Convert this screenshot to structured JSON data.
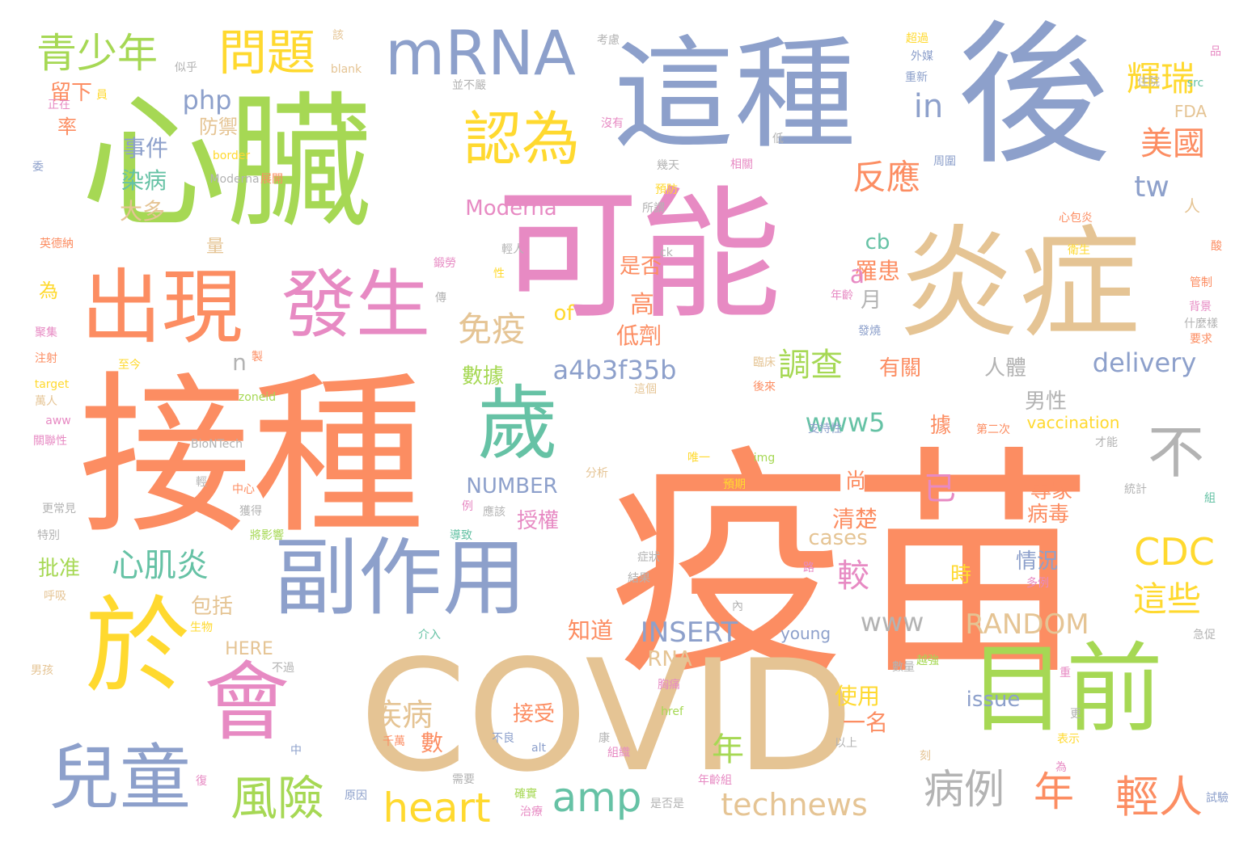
{
  "words": [
    {
      "text": "疫苗",
      "color": "c0"
    },
    {
      "text": "接種",
      "color": "c0"
    },
    {
      "text": "可能",
      "color": "c2"
    },
    {
      "text": "後",
      "color": "c1"
    },
    {
      "text": "心臟",
      "color": "c3"
    },
    {
      "text": "這種",
      "color": "c1"
    },
    {
      "text": "炎症",
      "color": "c5"
    },
    {
      "text": "COVID",
      "color": "c5"
    },
    {
      "text": "副作用",
      "color": "c1"
    },
    {
      "text": "於",
      "color": "c4"
    },
    {
      "text": "目前",
      "color": "c3"
    },
    {
      "text": "出現",
      "color": "c0"
    },
    {
      "text": "發生",
      "color": "c2"
    },
    {
      "text": "歲",
      "color": "c6"
    },
    {
      "text": "會",
      "color": "c2"
    },
    {
      "text": "兒童",
      "color": "c1"
    },
    {
      "text": "mRNA",
      "color": "c1"
    },
    {
      "text": "認為",
      "color": "c4"
    },
    {
      "text": "問題",
      "color": "c4"
    },
    {
      "text": "青少年",
      "color": "c3"
    },
    {
      "text": "風險",
      "color": "c3"
    },
    {
      "text": "heart",
      "color": "c4"
    },
    {
      "text": "amp",
      "color": "c6"
    },
    {
      "text": "technews",
      "color": "c5"
    },
    {
      "text": "病例",
      "color": "c7"
    },
    {
      "text": "年",
      "color": "c0"
    },
    {
      "text": "輕人",
      "color": "c0"
    },
    {
      "text": "CDC",
      "color": "c4"
    },
    {
      "text": "這些",
      "color": "c4"
    },
    {
      "text": "輝瑞",
      "color": "c4"
    },
    {
      "text": "美國",
      "color": "c0"
    },
    {
      "text": "反應",
      "color": "c0"
    },
    {
      "text": "in",
      "color": "c1"
    },
    {
      "text": "免疫",
      "color": "c5"
    },
    {
      "text": "心肌炎",
      "color": "c6"
    },
    {
      "text": "不",
      "color": "c7"
    },
    {
      "text": "a4b3f35b",
      "color": "c1"
    },
    {
      "text": "delivery",
      "color": "c1"
    },
    {
      "text": "INSERT",
      "color": "c1"
    },
    {
      "text": "RANDOM",
      "color": "c5"
    },
    {
      "text": "www5",
      "color": "c6"
    },
    {
      "text": "www",
      "color": "c7"
    },
    {
      "text": "調查",
      "color": "c3"
    },
    {
      "text": "php",
      "color": "c1"
    },
    {
      "text": "tw",
      "color": "c1"
    },
    {
      "text": "已",
      "color": "c2"
    },
    {
      "text": "較",
      "color": "c2"
    },
    {
      "text": "疾病",
      "color": "c5"
    },
    {
      "text": "年",
      "color": "c3"
    },
    {
      "text": "防禦",
      "color": "c5"
    },
    {
      "text": "事件",
      "color": "c1"
    },
    {
      "text": "染病",
      "color": "c6"
    },
    {
      "text": "大多",
      "color": "c5"
    },
    {
      "text": "留下",
      "color": "c0"
    },
    {
      "text": "率",
      "color": "c0"
    },
    {
      "text": "Moderna",
      "color": "c2"
    },
    {
      "text": "NUMBER",
      "color": "c1"
    },
    {
      "text": "數據",
      "color": "c3"
    },
    {
      "text": "低劑",
      "color": "c0"
    },
    {
      "text": "高",
      "color": "c0"
    },
    {
      "text": "是否",
      "color": "c0"
    },
    {
      "text": "罹患",
      "color": "c0"
    },
    {
      "text": "cb",
      "color": "c6"
    },
    {
      "text": "a",
      "color": "c2"
    },
    {
      "text": "月",
      "color": "c7"
    },
    {
      "text": "of",
      "color": "c4"
    },
    {
      "text": "n",
      "color": "c7"
    },
    {
      "text": "有關",
      "color": "c0"
    },
    {
      "text": "人體",
      "color": "c7"
    },
    {
      "text": "男性",
      "color": "c7"
    },
    {
      "text": "據",
      "color": "c0"
    },
    {
      "text": "vaccination",
      "color": "c4"
    },
    {
      "text": "專家",
      "color": "c0"
    },
    {
      "text": "病毒",
      "color": "c0"
    },
    {
      "text": "情況",
      "color": "c1"
    },
    {
      "text": "時",
      "color": "c4"
    },
    {
      "text": "尚",
      "color": "c0"
    },
    {
      "text": "清楚",
      "color": "c0"
    },
    {
      "text": "cases",
      "color": "c5"
    },
    {
      "text": "授權",
      "color": "c2"
    },
    {
      "text": "批准",
      "color": "c3"
    },
    {
      "text": "包括",
      "color": "c5"
    },
    {
      "text": "知道",
      "color": "c0"
    },
    {
      "text": "HERE",
      "color": "c5"
    },
    {
      "text": "RNA",
      "color": "c5"
    },
    {
      "text": "接受",
      "color": "c0"
    },
    {
      "text": "數",
      "color": "c0"
    },
    {
      "text": "使用",
      "color": "c4"
    },
    {
      "text": "一名",
      "color": "c0"
    },
    {
      "text": "issue",
      "color": "c1"
    },
    {
      "text": "young",
      "color": "c1"
    },
    {
      "text": "FDA",
      "color": "c5"
    },
    {
      "text": "人",
      "color": "c5"
    },
    {
      "text": "量",
      "color": "c5"
    },
    {
      "text": "為",
      "color": "c4"
    },
    {
      "text": "似乎",
      "color": "c7"
    },
    {
      "text": "考慮",
      "color": "c7"
    },
    {
      "text": "並不嚴",
      "color": "c7"
    },
    {
      "text": "src",
      "color": "c6"
    },
    {
      "text": "blank",
      "color": "c5"
    },
    {
      "text": "border",
      "color": "c4"
    },
    {
      "text": "Moderna",
      "color": "c7"
    },
    {
      "text": "BioNTech",
      "color": "c7"
    },
    {
      "text": "zoneid",
      "color": "c3"
    },
    {
      "text": "target",
      "color": "c4"
    },
    {
      "text": "alt",
      "color": "c1"
    },
    {
      "text": "href",
      "color": "c3"
    },
    {
      "text": "img",
      "color": "c3"
    },
    {
      "text": "ck",
      "color": "c7"
    },
    {
      "text": "心包炎",
      "color": "c0"
    },
    {
      "text": "英德納",
      "color": "c0"
    },
    {
      "text": "注射",
      "color": "c0"
    },
    {
      "text": "萬人",
      "color": "c5"
    },
    {
      "text": "聚集",
      "color": "c2"
    },
    {
      "text": "更常見",
      "color": "c7"
    },
    {
      "text": "特別",
      "color": "c7"
    },
    {
      "text": "呼吸",
      "color": "c5"
    },
    {
      "text": "男孩",
      "color": "c5"
    },
    {
      "text": "關聯性",
      "color": "c2"
    },
    {
      "text": "中心",
      "color": "c0"
    },
    {
      "text": "獲得",
      "color": "c7"
    },
    {
      "text": "將影響",
      "color": "c3"
    },
    {
      "text": "導致",
      "color": "c6"
    },
    {
      "text": "生物",
      "color": "c4"
    },
    {
      "text": "介入",
      "color": "c6"
    },
    {
      "text": "不過",
      "color": "c7"
    },
    {
      "text": "原因",
      "color": "c1"
    },
    {
      "text": "需要",
      "color": "c7"
    },
    {
      "text": "治療",
      "color": "c2"
    },
    {
      "text": "確實",
      "color": "c3"
    },
    {
      "text": "年齡組",
      "color": "c2"
    },
    {
      "text": "是否是",
      "color": "c7"
    },
    {
      "text": "千萬",
      "color": "c0"
    },
    {
      "text": "不良",
      "color": "c1"
    },
    {
      "text": "組織",
      "color": "c2"
    },
    {
      "text": "胸痛",
      "color": "c2"
    },
    {
      "text": "症狀",
      "color": "c7"
    },
    {
      "text": "結果",
      "color": "c7"
    },
    {
      "text": "數量",
      "color": "c7"
    },
    {
      "text": "越強",
      "color": "c3"
    },
    {
      "text": "以上",
      "color": "c7"
    },
    {
      "text": "統計",
      "color": "c7"
    },
    {
      "text": "試驗",
      "color": "c1"
    },
    {
      "text": "表示",
      "color": "c4"
    },
    {
      "text": "急促",
      "color": "c7"
    },
    {
      "text": "多例",
      "color": "c2"
    },
    {
      "text": "第二次",
      "color": "c0"
    },
    {
      "text": "才能",
      "color": "c7"
    },
    {
      "text": "支持性",
      "color": "c1"
    },
    {
      "text": "唯一",
      "color": "c4"
    },
    {
      "text": "預期",
      "color": "c4"
    },
    {
      "text": "分析",
      "color": "c5"
    },
    {
      "text": "這個",
      "color": "c5"
    },
    {
      "text": "臨床",
      "color": "c5"
    },
    {
      "text": "後來",
      "color": "c0"
    },
    {
      "text": "發燒",
      "color": "c1"
    },
    {
      "text": "年齡",
      "color": "c2"
    },
    {
      "text": "傳",
      "color": "c7"
    },
    {
      "text": "鍛勞",
      "color": "c2"
    },
    {
      "text": "輕人",
      "color": "c7"
    },
    {
      "text": "性",
      "color": "c4"
    },
    {
      "text": "預防",
      "color": "c4"
    },
    {
      "text": "所謂",
      "color": "c7"
    },
    {
      "text": "幾天",
      "color": "c7"
    },
    {
      "text": "相關",
      "color": "c2"
    },
    {
      "text": "周圍",
      "color": "c1"
    },
    {
      "text": "住院",
      "color": "c7"
    },
    {
      "text": "超過",
      "color": "c4"
    },
    {
      "text": "外媒",
      "color": "c1"
    },
    {
      "text": "重新",
      "color": "c1"
    },
    {
      "text": "衛生",
      "color": "c4"
    },
    {
      "text": "什麼樣",
      "color": "c7"
    },
    {
      "text": "背景",
      "color": "c2"
    },
    {
      "text": "要求",
      "color": "c0"
    },
    {
      "text": "管制",
      "color": "c0"
    },
    {
      "text": "展開",
      "color": "c0"
    },
    {
      "text": "沒有",
      "color": "c2"
    },
    {
      "text": "低",
      "color": "c7"
    },
    {
      "text": "正在",
      "color": "c2"
    },
    {
      "text": "員",
      "color": "c4"
    },
    {
      "text": "該",
      "color": "c5"
    },
    {
      "text": "品",
      "color": "c2"
    },
    {
      "text": "至今",
      "color": "c4"
    },
    {
      "text": "製",
      "color": "c0"
    },
    {
      "text": "例",
      "color": "c2"
    },
    {
      "text": "應該",
      "color": "c7"
    },
    {
      "text": "輕",
      "color": "c7"
    },
    {
      "text": "組",
      "color": "c6"
    },
    {
      "text": "內",
      "color": "c7"
    },
    {
      "text": "路",
      "color": "c2"
    },
    {
      "text": "更",
      "color": "c7"
    },
    {
      "text": "康",
      "color": "c7"
    },
    {
      "text": "重",
      "color": "c2"
    },
    {
      "text": "復",
      "color": "c2"
    },
    {
      "text": "中",
      "color": "c1"
    },
    {
      "text": "刻",
      "color": "c5"
    },
    {
      "text": "酸",
      "color": "c0"
    },
    {
      "text": "委",
      "color": "c1"
    },
    {
      "text": "為",
      "color": "c2"
    },
    {
      "text": "aww",
      "color": "c2"
    }
  ]
}
